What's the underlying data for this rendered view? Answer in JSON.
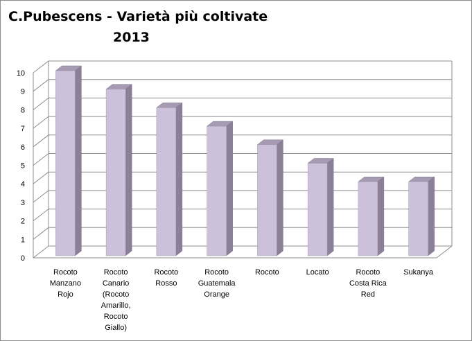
{
  "chart_data": {
    "type": "bar",
    "title_line1": "C.Pubescens - Varietà  più coltivate",
    "title_line2": "2013",
    "categories": [
      [
        "Rocoto",
        "Manzano",
        "Rojo"
      ],
      [
        "Rocoto",
        "Canario",
        "(Rocoto",
        "Amarillo,",
        "Rocoto",
        "Giallo)"
      ],
      [
        "Rocoto",
        "Rosso"
      ],
      [
        "Rocoto",
        "Guatemala",
        "Orange"
      ],
      [
        "Rocoto"
      ],
      [
        "Locato"
      ],
      [
        "Rocoto",
        "Costa Rica",
        "Red"
      ],
      [
        "Sukanya"
      ]
    ],
    "values": [
      10,
      9,
      8,
      7,
      6,
      5,
      4,
      4
    ],
    "ylim": [
      0,
      10
    ],
    "yticks": [
      "0",
      "1",
      "2",
      "3",
      "4",
      "5",
      "6",
      "7",
      "8",
      "9",
      "10"
    ],
    "grid": true,
    "legend": "none",
    "colors": {
      "bar_front": "#ccc0da",
      "bar_side": "#8b8097",
      "bar_top": "#a69bb3",
      "grid": "#8c8c8c",
      "wall": "#ffffff"
    }
  }
}
